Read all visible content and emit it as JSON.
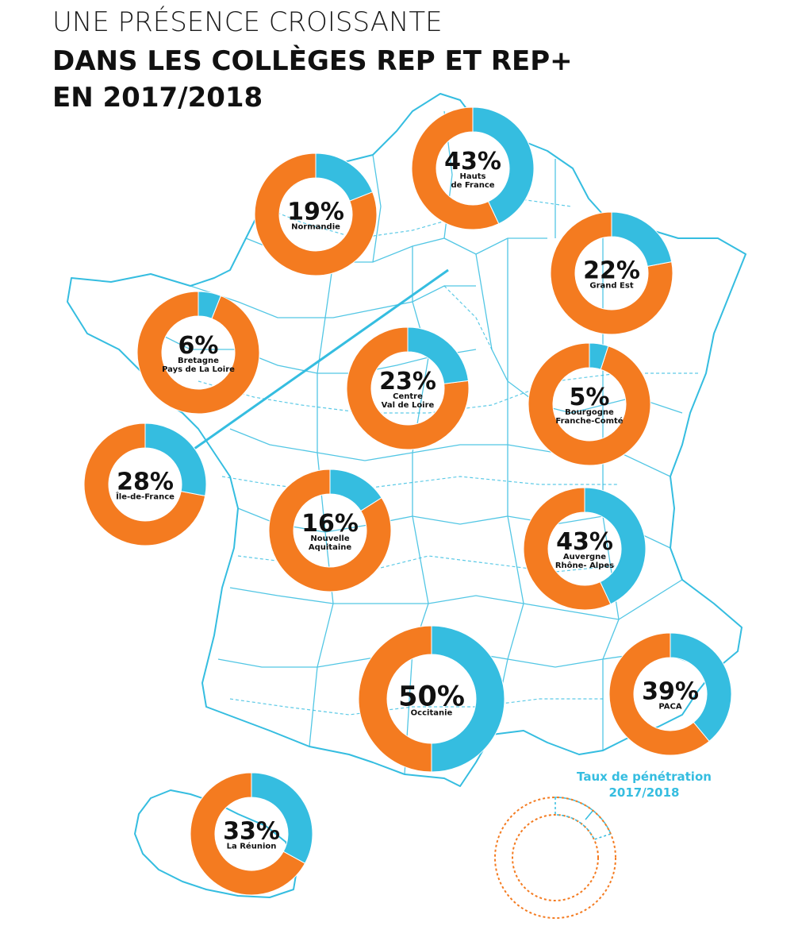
{
  "title": {
    "line1": "UNE PRÉSENCE CROISSANTE",
    "line2": "DANS LES COLLÈGES REP ET REP+",
    "line3": "EN 2017/2018"
  },
  "colors": {
    "accent": "#35bde0",
    "base": "#f47b20",
    "map": "#35bde0"
  },
  "legend": {
    "line1": "Taux de pénétration",
    "line2": "2017/2018"
  },
  "chart_data": {
    "type": "pie",
    "variant": "donut",
    "unit": "%",
    "regions": [
      {
        "name": "Hauts de France",
        "label_lines": [
          "Hauts",
          "de France"
        ],
        "value": 43
      },
      {
        "name": "Normandie",
        "label_lines": [
          "Normandie"
        ],
        "value": 19
      },
      {
        "name": "Grand Est",
        "label_lines": [
          "Grand Est"
        ],
        "value": 22
      },
      {
        "name": "Bretagne Pays de La Loire",
        "label_lines": [
          "Bretagne",
          "Pays de La Loire"
        ],
        "value": 6
      },
      {
        "name": "Centre Val de Loire",
        "label_lines": [
          "Centre",
          "Val de Loire"
        ],
        "value": 23
      },
      {
        "name": "Bourgogne Franche-Comté",
        "label_lines": [
          "Bourgogne",
          "Franche-Comté"
        ],
        "value": 5
      },
      {
        "name": "Île-de-France",
        "label_lines": [
          "Île-de-France"
        ],
        "value": 28
      },
      {
        "name": "Nouvelle Aquitaine",
        "label_lines": [
          "Nouvelle",
          "Aquitaine"
        ],
        "value": 16
      },
      {
        "name": "Auvergne Rhône- Alpes",
        "label_lines": [
          "Auvergne",
          "Rhône- Alpes"
        ],
        "value": 43
      },
      {
        "name": "Occitanie",
        "label_lines": [
          "Occitanie"
        ],
        "value": 50
      },
      {
        "name": "PACA",
        "label_lines": [
          "PACA"
        ],
        "value": 39
      },
      {
        "name": "La Réunion",
        "label_lines": [
          "La Réunion"
        ],
        "value": 33
      }
    ]
  }
}
